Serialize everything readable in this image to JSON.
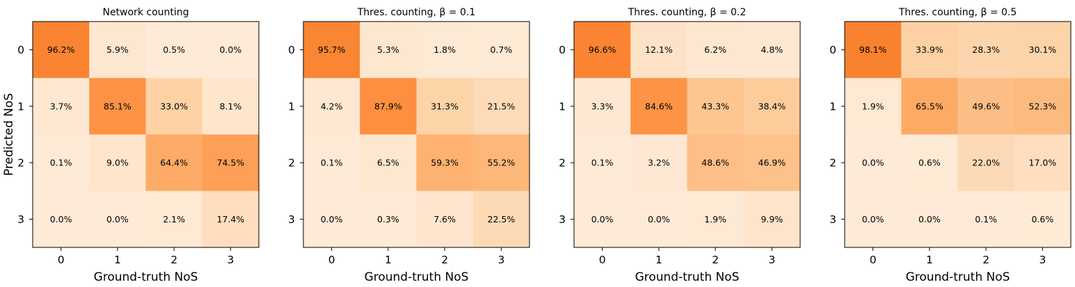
{
  "chart_data": [
    {
      "type": "heatmap",
      "title": "Network counting",
      "xlabel": "Ground-truth NoS",
      "ylabel": "Predicted NoS",
      "x_categories": [
        "0",
        "1",
        "2",
        "3"
      ],
      "y_categories": [
        "0",
        "1",
        "2",
        "3"
      ],
      "values": [
        [
          96.2,
          5.9,
          0.5,
          0.0
        ],
        [
          3.7,
          85.1,
          33.0,
          8.1
        ],
        [
          0.1,
          9.0,
          64.4,
          74.5
        ],
        [
          0.0,
          0.0,
          2.1,
          17.4
        ]
      ],
      "labels": [
        [
          "96.2%",
          "5.9%",
          "0.5%",
          "0.0%"
        ],
        [
          "3.7%",
          "85.1%",
          "33.0%",
          "8.1%"
        ],
        [
          "0.1%",
          "9.0%",
          "64.4%",
          "74.5%"
        ],
        [
          "0.0%",
          "0.0%",
          "2.1%",
          "17.4%"
        ]
      ]
    },
    {
      "type": "heatmap",
      "title": "Thres. counting, β = 0.1",
      "xlabel": "Ground-truth NoS",
      "ylabel": "",
      "x_categories": [
        "0",
        "1",
        "2",
        "3"
      ],
      "y_categories": [
        "0",
        "1",
        "2",
        "3"
      ],
      "values": [
        [
          95.7,
          5.3,
          1.8,
          0.7
        ],
        [
          4.2,
          87.9,
          31.3,
          21.5
        ],
        [
          0.1,
          6.5,
          59.3,
          55.2
        ],
        [
          0.0,
          0.3,
          7.6,
          22.5
        ]
      ],
      "labels": [
        [
          "95.7%",
          "5.3%",
          "1.8%",
          "0.7%"
        ],
        [
          "4.2%",
          "87.9%",
          "31.3%",
          "21.5%"
        ],
        [
          "0.1%",
          "6.5%",
          "59.3%",
          "55.2%"
        ],
        [
          "0.0%",
          "0.3%",
          "7.6%",
          "22.5%"
        ]
      ]
    },
    {
      "type": "heatmap",
      "title": "Thres. counting, β = 0.2",
      "xlabel": "Ground-truth NoS",
      "ylabel": "",
      "x_categories": [
        "0",
        "1",
        "2",
        "3"
      ],
      "y_categories": [
        "0",
        "1",
        "2",
        "3"
      ],
      "values": [
        [
          96.6,
          12.1,
          6.2,
          4.8
        ],
        [
          3.3,
          84.6,
          43.3,
          38.4
        ],
        [
          0.1,
          3.2,
          48.6,
          46.9
        ],
        [
          0.0,
          0.0,
          1.9,
          9.9
        ]
      ],
      "labels": [
        [
          "96.6%",
          "12.1%",
          "6.2%",
          "4.8%"
        ],
        [
          "3.3%",
          "84.6%",
          "43.3%",
          "38.4%"
        ],
        [
          "0.1%",
          "3.2%",
          "48.6%",
          "46.9%"
        ],
        [
          "0.0%",
          "0.0%",
          "1.9%",
          "9.9%"
        ]
      ]
    },
    {
      "type": "heatmap",
      "title": "Thres. counting, β = 0.5",
      "xlabel": "Ground-truth NoS",
      "ylabel": "",
      "x_categories": [
        "0",
        "1",
        "2",
        "3"
      ],
      "y_categories": [
        "0",
        "1",
        "2",
        "3"
      ],
      "values": [
        [
          98.1,
          33.9,
          28.3,
          30.1
        ],
        [
          1.9,
          65.5,
          49.6,
          52.3
        ],
        [
          0.0,
          0.6,
          22.0,
          17.0
        ],
        [
          0.0,
          0.0,
          0.1,
          0.6
        ]
      ],
      "labels": [
        [
          "98.1%",
          "33.9%",
          "28.3%",
          "30.1%"
        ],
        [
          "1.9%",
          "65.5%",
          "49.6%",
          "52.3%"
        ],
        [
          "0.0%",
          "0.6%",
          "22.0%",
          "17.0%"
        ],
        [
          "0.0%",
          "0.0%",
          "0.1%",
          "0.6%"
        ]
      ]
    }
  ],
  "colormap": {
    "low": "#fee6ce",
    "high": "#e5560b",
    "stops": [
      "#fff5eb",
      "#fee6ce",
      "#fdd0a2",
      "#fdae6b",
      "#fd8d3c",
      "#f16913",
      "#d94801"
    ]
  }
}
